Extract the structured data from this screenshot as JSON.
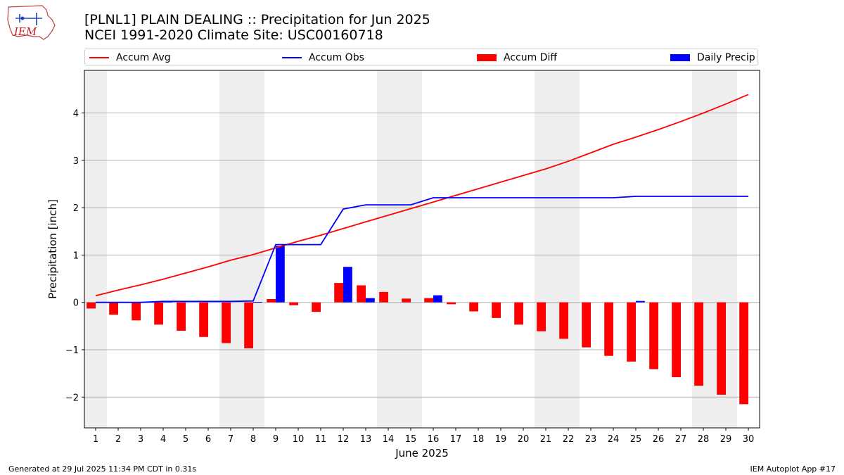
{
  "header": {
    "logo_text": "IEM",
    "title_line1": "[PLNL1] PLAIN DEALING :: Precipitation for Jun 2025",
    "title_line2": "NCEI 1991-2020 Climate Site: USC00160718"
  },
  "legend": {
    "placement": "top",
    "items": [
      {
        "label": "Accum Avg",
        "kind": "line",
        "color": "#ff0000"
      },
      {
        "label": "Accum Obs",
        "kind": "line",
        "color": "#0000ff"
      },
      {
        "label": "Accum Diff",
        "kind": "box",
        "color": "#ff0000"
      },
      {
        "label": "Daily Precip",
        "kind": "box",
        "color": "#0000ff"
      }
    ]
  },
  "footer": {
    "left": "Generated at 29 Jul 2025 11:34 PM CDT in 0.31s",
    "right": "IEM Autoplot App #17"
  },
  "colors": {
    "avg": "#ff0000",
    "obs": "#0000ff",
    "weekend_shade": "#eeeeee",
    "grid": "#b0b0b0"
  },
  "chart_data": {
    "type": "bar",
    "xlabel": "June 2025",
    "ylabel": "Precipitation [inch]",
    "xlim": [
      0.5,
      30.5
    ],
    "ylim": [
      -2.65,
      4.9
    ],
    "yticks": [
      -2,
      -1,
      0,
      1,
      2,
      3,
      4
    ],
    "ytick_labels": [
      "−2",
      "−1",
      "0",
      "1",
      "2",
      "3",
      "4"
    ],
    "grid": "horizontal",
    "weekend_shading": [
      [
        0.5,
        1.5
      ],
      [
        6.5,
        8.5
      ],
      [
        13.5,
        15.5
      ],
      [
        20.5,
        22.5
      ],
      [
        27.5,
        29.5
      ]
    ],
    "days": [
      1,
      2,
      3,
      4,
      5,
      6,
      7,
      8,
      9,
      10,
      11,
      12,
      13,
      14,
      15,
      16,
      17,
      18,
      19,
      20,
      21,
      22,
      23,
      24,
      25,
      26,
      27,
      28,
      29,
      30
    ],
    "series": [
      {
        "name": "Accum Avg",
        "kind": "line",
        "values": [
          0.14,
          0.26,
          0.37,
          0.49,
          0.62,
          0.75,
          0.89,
          1.01,
          1.15,
          1.29,
          1.42,
          1.56,
          1.7,
          1.84,
          1.98,
          2.12,
          2.26,
          2.4,
          2.54,
          2.68,
          2.82,
          2.98,
          3.16,
          3.34,
          3.49,
          3.65,
          3.82,
          4.0,
          4.19,
          4.39
        ]
      },
      {
        "name": "Accum Obs",
        "kind": "line",
        "values": [
          0.0,
          0.0,
          0.0,
          0.02,
          0.02,
          0.02,
          0.02,
          0.03,
          1.22,
          1.22,
          1.22,
          1.97,
          2.06,
          2.06,
          2.06,
          2.21,
          2.21,
          2.21,
          2.21,
          2.21,
          2.21,
          2.21,
          2.21,
          2.21,
          2.24,
          2.24,
          2.24,
          2.24,
          2.24,
          2.24
        ]
      },
      {
        "name": "Accum Diff",
        "kind": "bar",
        "values": [
          -0.13,
          -0.26,
          -0.38,
          -0.47,
          -0.6,
          -0.73,
          -0.86,
          -0.97,
          0.07,
          -0.06,
          -0.2,
          0.41,
          0.36,
          0.22,
          0.08,
          0.09,
          -0.04,
          -0.19,
          -0.33,
          -0.47,
          -0.61,
          -0.77,
          -0.95,
          -1.13,
          -1.25,
          -1.41,
          -1.58,
          -1.76,
          -1.95,
          -2.15
        ]
      },
      {
        "name": "Daily Precip",
        "kind": "bar",
        "values": [
          0,
          0,
          0,
          0.02,
          0,
          0,
          0,
          0.01,
          1.19,
          0,
          0,
          0.75,
          0.09,
          0,
          0,
          0.15,
          0,
          0,
          0,
          0,
          0,
          0,
          0,
          0,
          0.03,
          0,
          0,
          0,
          0,
          0
        ]
      }
    ]
  }
}
